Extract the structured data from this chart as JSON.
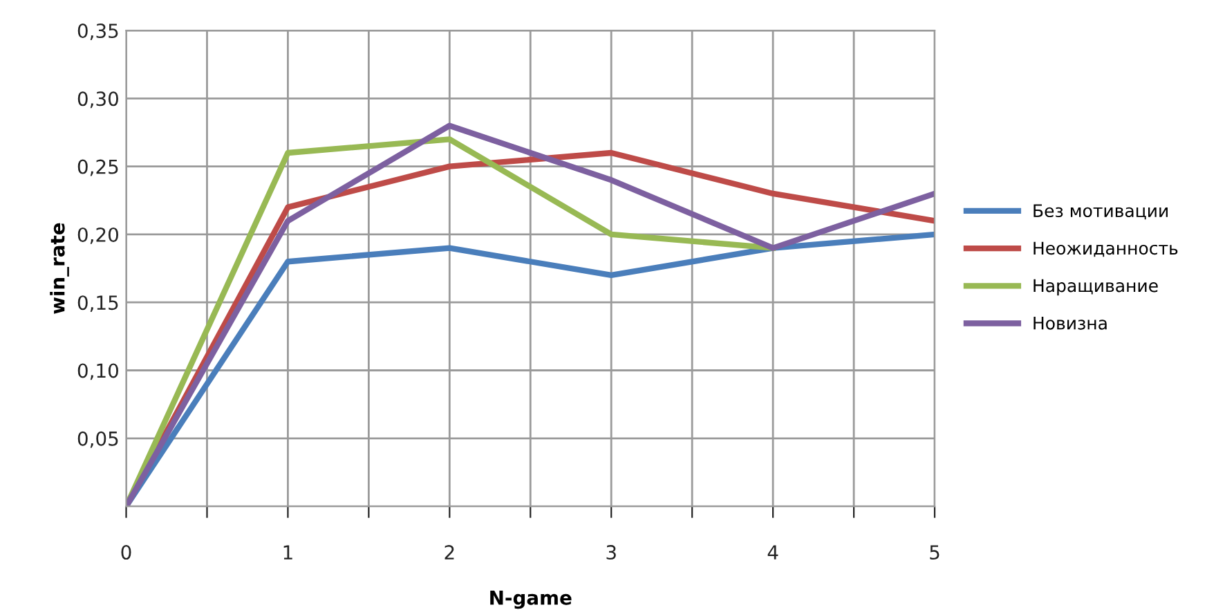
{
  "chart_data": {
    "type": "line",
    "xlabel": "N-game",
    "ylabel": "win_rate",
    "x": [
      0,
      1,
      2,
      3,
      4,
      5
    ],
    "series": [
      {
        "name": "Без мотивации",
        "color": "#4a7ebb",
        "values": [
          0,
          0.18,
          0.19,
          0.17,
          0.19,
          0.2
        ]
      },
      {
        "name": "Неожиданность",
        "color": "#be4b48",
        "values": [
          0,
          0.22,
          0.25,
          0.26,
          0.23,
          0.21
        ]
      },
      {
        "name": "Наращивание",
        "color": "#98b954",
        "values": [
          0,
          0.26,
          0.27,
          0.2,
          0.19,
          null
        ]
      },
      {
        "name": "Новизна",
        "color": "#7d60a0",
        "values": [
          0,
          0.21,
          0.28,
          0.24,
          0.19,
          0.23
        ]
      }
    ],
    "xlim": [
      0,
      5
    ],
    "xticks": [
      0,
      {
        "value": 0.5,
        "label": null
      },
      1,
      {
        "value": 1.5,
        "label": null
      },
      2,
      {
        "value": 2.5,
        "label": null
      },
      3,
      {
        "value": 3.5,
        "label": null
      },
      4,
      {
        "value": 4.5,
        "label": null
      },
      5
    ],
    "ylim": [
      0,
      0.35
    ],
    "yticks": [
      {
        "value": 0,
        "label": null
      },
      {
        "value": 0.05,
        "label": "0,05"
      },
      {
        "value": 0.1,
        "label": "0,10"
      },
      {
        "value": 0.15,
        "label": "0,15"
      },
      {
        "value": 0.2,
        "label": "0,20"
      },
      {
        "value": 0.25,
        "label": "0,25"
      },
      {
        "value": 0.3,
        "label": "0,30"
      },
      {
        "value": 0.35,
        "label": "0,35"
      }
    ],
    "grid": true,
    "legend": "right",
    "marker": "none",
    "line_style": "solid"
  }
}
